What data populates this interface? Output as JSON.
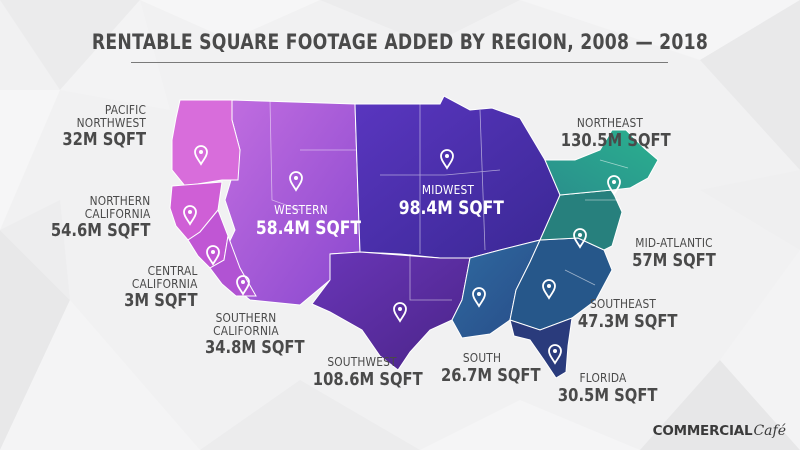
{
  "title": "RENTABLE SQUARE FOOTAGE ADDED BY REGION, 2008 — 2018",
  "brand": {
    "part1": "COMMERCIAL",
    "part2": "Café"
  },
  "colors": {
    "pacific_northwest": "#d56ad8",
    "northern_california": "#cf5fd6",
    "central_california": "#c25bd4",
    "southern_california": "#b255d4",
    "western": "#8f4fd0",
    "southwest": "#5a2a9a",
    "midwest": "#4a2aa8",
    "south": "#2f5a9a",
    "northeast": "#27a890",
    "mid_atlantic": "#27857f",
    "southeast": "#265a8a",
    "florida": "#2a3f7f",
    "label_text": "#4a4a4a"
  },
  "regions": [
    {
      "id": "pacific-northwest",
      "name_lines": [
        "PACIFIC",
        "NORTHWEST"
      ],
      "value": "32M SQFT",
      "amount_msqft": 32,
      "marker_icon": "map-pin-icon"
    },
    {
      "id": "northern-california",
      "name_lines": [
        "NORTHERN",
        "CALIFORNIA"
      ],
      "value": "54.6M SQFT",
      "amount_msqft": 54.6,
      "marker_icon": "map-pin-icon"
    },
    {
      "id": "central-california",
      "name_lines": [
        "CENTRAL",
        "CALIFORNIA"
      ],
      "value": "3M SQFT",
      "amount_msqft": 3,
      "marker_icon": "map-pin-icon"
    },
    {
      "id": "southern-california",
      "name_lines": [
        "SOUTHERN",
        "CALIFORNIA"
      ],
      "value": "34.8M SQFT",
      "amount_msqft": 34.8,
      "marker_icon": "map-pin-icon"
    },
    {
      "id": "western",
      "name_lines": [
        "WESTERN"
      ],
      "value": "58.4M SQFT",
      "amount_msqft": 58.4,
      "marker_icon": "map-pin-icon"
    },
    {
      "id": "southwest",
      "name_lines": [
        "SOUTHWEST"
      ],
      "value": "108.6M SQFT",
      "amount_msqft": 108.6,
      "marker_icon": "map-pin-icon"
    },
    {
      "id": "midwest",
      "name_lines": [
        "MIDWEST"
      ],
      "value": "98.4M SQFT",
      "amount_msqft": 98.4,
      "marker_icon": "map-pin-icon"
    },
    {
      "id": "south",
      "name_lines": [
        "SOUTH"
      ],
      "value": "26.7M SQFT",
      "amount_msqft": 26.7,
      "marker_icon": "map-pin-icon"
    },
    {
      "id": "northeast",
      "name_lines": [
        "NORTHEAST"
      ],
      "value": "130.5M SQFT",
      "amount_msqft": 130.5,
      "marker_icon": "map-pin-icon"
    },
    {
      "id": "mid-atlantic",
      "name_lines": [
        "MID-ATLANTIC"
      ],
      "value": "57M SQFT",
      "amount_msqft": 57,
      "marker_icon": "map-pin-icon"
    },
    {
      "id": "southeast",
      "name_lines": [
        "SOUTHEAST"
      ],
      "value": "47.3M SQFT",
      "amount_msqft": 47.3,
      "marker_icon": "map-pin-icon"
    },
    {
      "id": "florida",
      "name_lines": [
        "FLORIDA"
      ],
      "value": "30.5M SQFT",
      "amount_msqft": 30.5,
      "marker_icon": "map-pin-icon"
    }
  ]
}
